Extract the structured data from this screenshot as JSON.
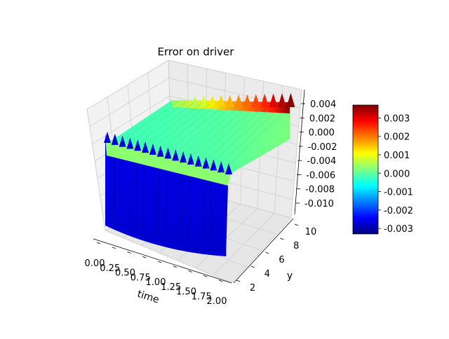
{
  "chart_data": {
    "type": "surface3d",
    "title": "Error on driver",
    "xlabel": "time",
    "ylabel": "y",
    "zlabel": "",
    "x_ticks": [
      "0.00",
      "0.25",
      "0.50",
      "0.75",
      "1.00",
      "1.25",
      "1.50",
      "1.75",
      "2.00"
    ],
    "y_ticks": [
      "2",
      "4",
      "6",
      "8",
      "10"
    ],
    "z_ticks": [
      "0.004",
      "0.002",
      "0.000",
      "-0.002",
      "-0.004",
      "-0.006",
      "-0.008",
      "-0.010"
    ],
    "xlim": [
      0,
      2
    ],
    "ylim": [
      1,
      10
    ],
    "zlim": [
      -0.011,
      0.005
    ],
    "colormap": "jet",
    "colorbar": {
      "range": [
        -0.0033,
        0.0037
      ],
      "ticks": [
        "0.003",
        "0.002",
        "0.001",
        "0.000",
        "-0.001",
        "-0.002",
        "-0.003"
      ]
    },
    "surface": {
      "description_values": {
        "y_low_edge_error": -0.0033,
        "plateau_error": 0.0,
        "time_high_y_high_error": 0.0037
      }
    }
  }
}
